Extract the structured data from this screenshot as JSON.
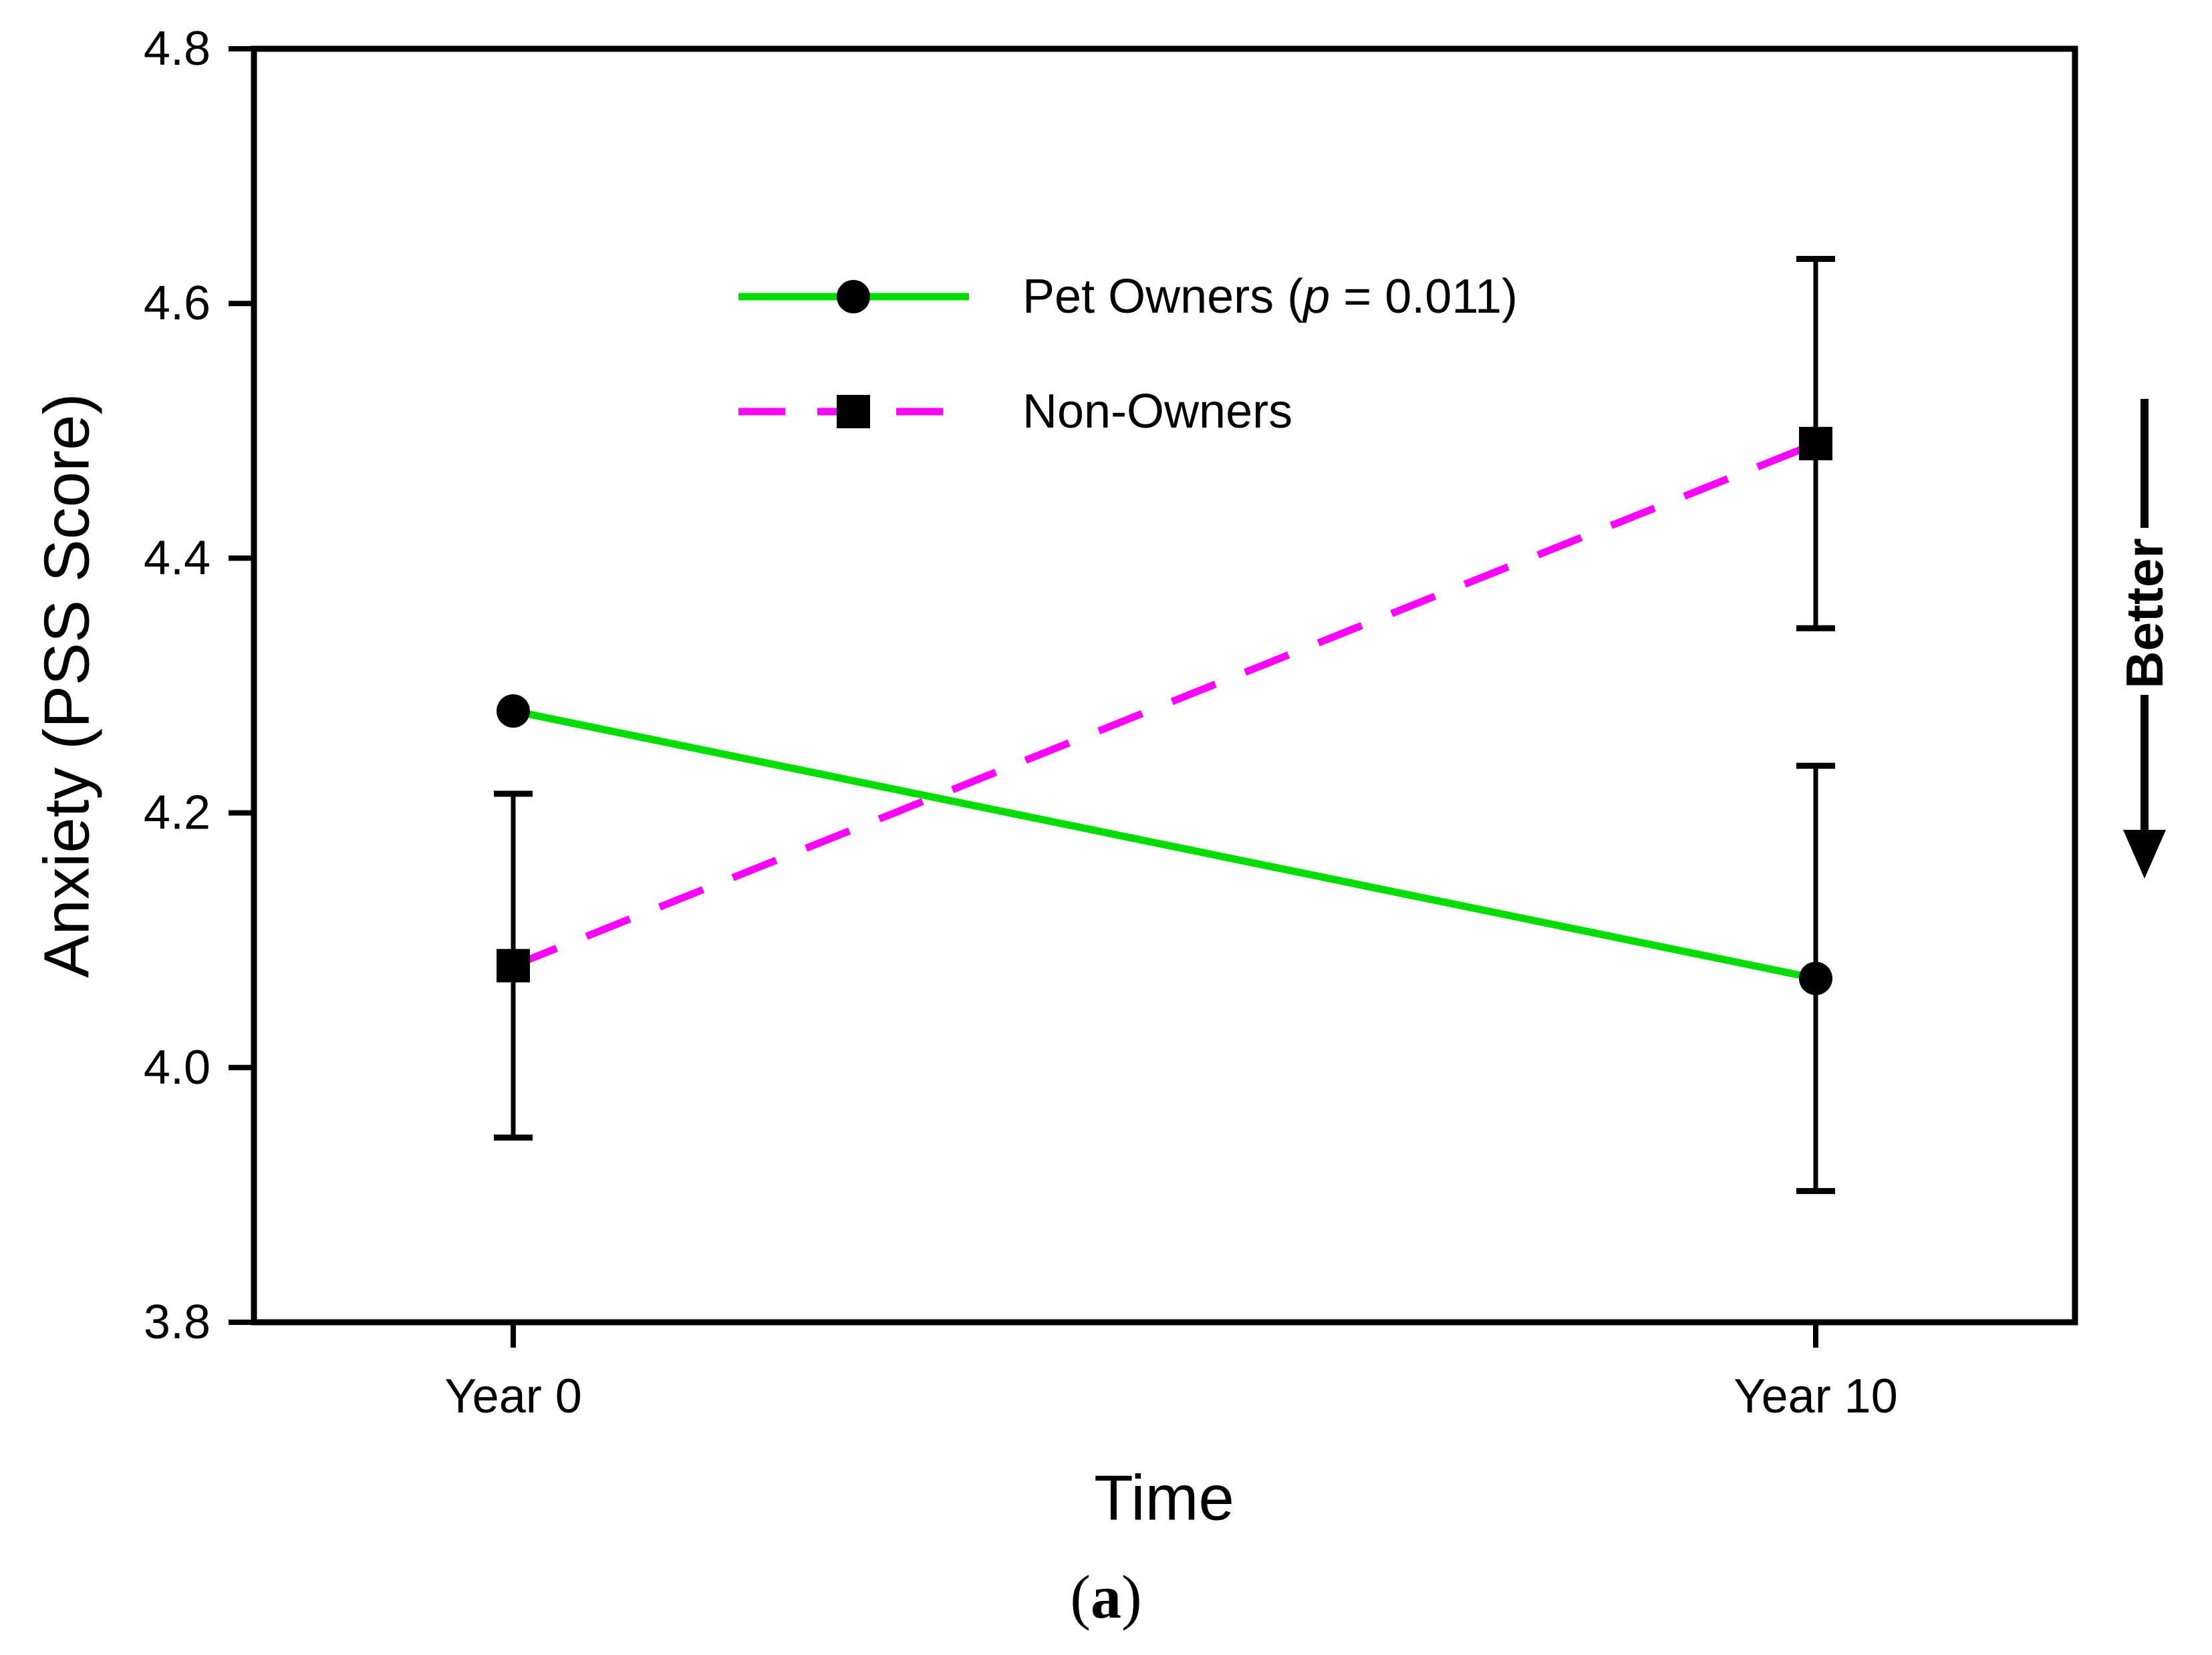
{
  "figure": {
    "caption_parts": [
      {
        "text": "(",
        "bold": false
      },
      {
        "text": "a",
        "bold": true
      },
      {
        "text": ")",
        "bold": false
      }
    ],
    "better_annotation": "Better"
  },
  "chart_data": {
    "type": "line",
    "title": "",
    "xlabel": "Time",
    "ylabel": "Anxiety (PSS Score)",
    "categories": [
      "Year 0",
      "Year 10"
    ],
    "ylim": [
      3.8,
      4.8
    ],
    "yticks": [
      "3.8",
      "4.0",
      "4.2",
      "4.4",
      "4.6",
      "4.8"
    ],
    "grid": false,
    "legend_position": "inside upper-left",
    "series": [
      {
        "name": "Pet Owners (p = 0.011)",
        "name_parts": [
          {
            "text": "Pet Owners (",
            "italic": false
          },
          {
            "text": "p",
            "italic": true
          },
          {
            "text": " = 0.011)",
            "italic": false
          }
        ],
        "values": [
          4.28,
          4.07
        ],
        "errors": [
          null,
          0.167
        ],
        "color": "#00dd00",
        "line_style": "solid",
        "marker": "circle",
        "marker_color": "#000000"
      },
      {
        "name": "Non-Owners",
        "name_parts": [
          {
            "text": "Non-Owners",
            "italic": false
          }
        ],
        "values": [
          4.08,
          4.49
        ],
        "errors": [
          0.135,
          0.145
        ],
        "color": "#ff00ff",
        "line_style": "dashed",
        "marker": "square",
        "marker_color": "#000000"
      }
    ]
  }
}
